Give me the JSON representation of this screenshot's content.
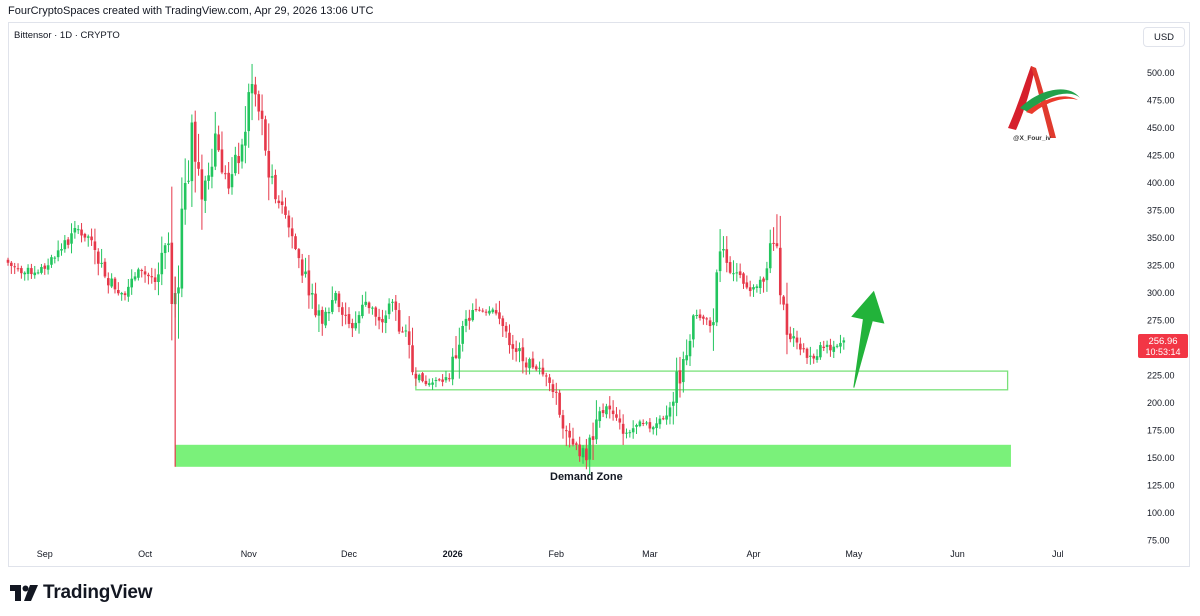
{
  "header": {
    "credit": "FourCryptoSpaces created with TradingView.com, Apr 29, 2026 13:06 UTC"
  },
  "symbol_info": "Bittensor · 1D · CRYPTO",
  "currency": "USD",
  "price_tag": {
    "price": "256.96",
    "countdown": "10:53:14",
    "color": "#f23645"
  },
  "watermark": {
    "handle": "@X_Four_iv"
  },
  "footer": {
    "brand": "TradingView"
  },
  "colors": {
    "up": "#22c55e",
    "down": "#e6384a",
    "zone": "#6cf06c",
    "arrow": "#22b33a"
  },
  "chart_data": {
    "type": "candlestick",
    "title": "Bittensor · 1D · CRYPTO",
    "xlabel": "",
    "ylabel": "USD",
    "ylim": [
      75,
      520
    ],
    "y_ticks": [
      75,
      100,
      125,
      150,
      175,
      200,
      225,
      250,
      275,
      300,
      325,
      350,
      375,
      400,
      425,
      450,
      475,
      500
    ],
    "x_ticks": [
      {
        "date": "2025-09-01",
        "label": "Sep"
      },
      {
        "date": "2025-10-01",
        "label": "Oct"
      },
      {
        "date": "2025-11-01",
        "label": "Nov"
      },
      {
        "date": "2025-12-01",
        "label": "Dec"
      },
      {
        "date": "2026-01-01",
        "label": "2026"
      },
      {
        "date": "2026-02-01",
        "label": "Feb"
      },
      {
        "date": "2026-03-01",
        "label": "Mar"
      },
      {
        "date": "2026-04-01",
        "label": "Apr"
      },
      {
        "date": "2026-05-01",
        "label": "May"
      },
      {
        "date": "2026-06-01",
        "label": "Jun"
      },
      {
        "date": "2026-07-01",
        "label": "Jul"
      }
    ],
    "x_range": [
      "2025-08-21",
      "2026-07-25"
    ],
    "last_price": 256.96,
    "grid": false,
    "legend": "none",
    "price_path": [
      {
        "date": "2025-08-21",
        "close": 330
      },
      {
        "date": "2025-08-26",
        "close": 318
      },
      {
        "date": "2025-09-02",
        "close": 322
      },
      {
        "date": "2025-09-07",
        "close": 340
      },
      {
        "date": "2025-09-12",
        "close": 358
      },
      {
        "date": "2025-09-16",
        "close": 348
      },
      {
        "date": "2025-09-20",
        "close": 315
      },
      {
        "date": "2025-09-25",
        "close": 300
      },
      {
        "date": "2025-10-01",
        "close": 320
      },
      {
        "date": "2025-10-05",
        "close": 310
      },
      {
        "date": "2025-10-09",
        "close": 345
      },
      {
        "date": "2025-10-10",
        "close": 290
      },
      {
        "date": "2025-10-11",
        "close": 300
      },
      {
        "date": "2025-10-14",
        "close": 400
      },
      {
        "date": "2025-10-16",
        "close": 455
      },
      {
        "date": "2025-10-19",
        "close": 385
      },
      {
        "date": "2025-10-23",
        "close": 445
      },
      {
        "date": "2025-10-27",
        "close": 395
      },
      {
        "date": "2025-10-31",
        "close": 435
      },
      {
        "date": "2025-11-03",
        "close": 490
      },
      {
        "date": "2025-11-05",
        "close": 465
      },
      {
        "date": "2025-11-08",
        "close": 405
      },
      {
        "date": "2025-11-12",
        "close": 380
      },
      {
        "date": "2025-11-16",
        "close": 340
      },
      {
        "date": "2025-11-21",
        "close": 300
      },
      {
        "date": "2025-11-24",
        "close": 272
      },
      {
        "date": "2025-11-28",
        "close": 300
      },
      {
        "date": "2025-12-03",
        "close": 268
      },
      {
        "date": "2025-12-07",
        "close": 292
      },
      {
        "date": "2025-12-11",
        "close": 275
      },
      {
        "date": "2025-12-15",
        "close": 292
      },
      {
        "date": "2025-12-18",
        "close": 265
      },
      {
        "date": "2025-12-21",
        "close": 228
      },
      {
        "date": "2025-12-26",
        "close": 218
      },
      {
        "date": "2026-01-01",
        "close": 222
      },
      {
        "date": "2026-01-05",
        "close": 270
      },
      {
        "date": "2026-01-09",
        "close": 285
      },
      {
        "date": "2026-01-14",
        "close": 285
      },
      {
        "date": "2026-01-18",
        "close": 265
      },
      {
        "date": "2026-01-23",
        "close": 238
      },
      {
        "date": "2026-01-28",
        "close": 232
      },
      {
        "date": "2026-02-01",
        "close": 210
      },
      {
        "date": "2026-02-05",
        "close": 175
      },
      {
        "date": "2026-02-08",
        "close": 162
      },
      {
        "date": "2026-02-11",
        "close": 148
      },
      {
        "date": "2026-02-14",
        "close": 185
      },
      {
        "date": "2026-02-17",
        "close": 197
      },
      {
        "date": "2026-02-22",
        "close": 172
      },
      {
        "date": "2026-02-26",
        "close": 180
      },
      {
        "date": "2026-03-03",
        "close": 178
      },
      {
        "date": "2026-03-08",
        "close": 196
      },
      {
        "date": "2026-03-12",
        "close": 240
      },
      {
        "date": "2026-03-16",
        "close": 280
      },
      {
        "date": "2026-03-20",
        "close": 270
      },
      {
        "date": "2026-03-24",
        "close": 340
      },
      {
        "date": "2026-03-27",
        "close": 318
      },
      {
        "date": "2026-03-31",
        "close": 305
      },
      {
        "date": "2026-04-04",
        "close": 312
      },
      {
        "date": "2026-04-08",
        "close": 345
      },
      {
        "date": "2026-04-10",
        "close": 298
      },
      {
        "date": "2026-04-12",
        "close": 262
      },
      {
        "date": "2026-04-15",
        "close": 255
      },
      {
        "date": "2026-04-19",
        "close": 243
      },
      {
        "date": "2026-04-23",
        "close": 250
      },
      {
        "date": "2026-04-27",
        "close": 252
      },
      {
        "date": "2026-04-29",
        "close": 256.96
      }
    ],
    "annotations": [
      {
        "type": "zone",
        "label": "Demand Zone",
        "x_start": "2025-10-10",
        "x_end": "2026-06-17",
        "y_low": 142,
        "y_high": 162,
        "color": "#6cf06c"
      },
      {
        "type": "zone_outline",
        "label": "",
        "x_start": "2025-12-21",
        "x_end": "2026-06-16",
        "y_low": 212,
        "y_high": 229,
        "color": "#7ae27a"
      },
      {
        "type": "arrow",
        "label": "",
        "x_start": "2026-05-01",
        "y_start": 214,
        "x_end": "2026-05-07",
        "y_end": 302,
        "color": "#22b33a"
      }
    ]
  }
}
